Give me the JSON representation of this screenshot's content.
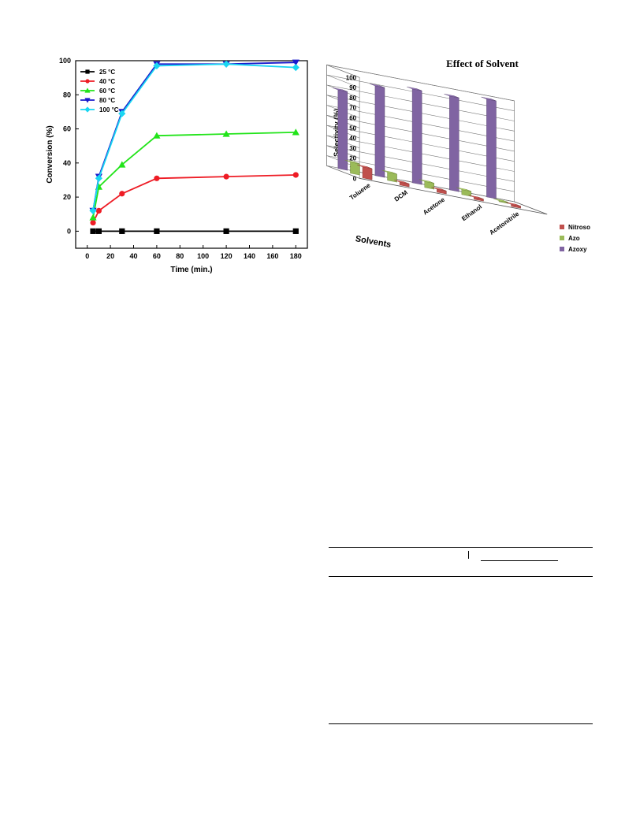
{
  "chart_data": [
    {
      "type": "line",
      "xlabel": "Time (min.)",
      "ylabel": "Conversion (%)",
      "xlim": [
        -10,
        190
      ],
      "ylim": [
        -10,
        100
      ],
      "x_ticks": [
        0,
        20,
        40,
        60,
        80,
        100,
        120,
        140,
        160,
        180
      ],
      "y_ticks": [
        0,
        20,
        40,
        60,
        80,
        100
      ],
      "legend_position": "top-left",
      "series": [
        {
          "name": "25 °C",
          "color": "#000000",
          "marker": "square",
          "x": [
            5,
            10,
            30,
            60,
            120,
            180
          ],
          "y": [
            0,
            0,
            0,
            0,
            0,
            0
          ]
        },
        {
          "name": "40 °C",
          "color": "#ee1c25",
          "marker": "circle",
          "x": [
            5,
            10,
            30,
            60,
            120,
            180
          ],
          "y": [
            5,
            12,
            22,
            31,
            32,
            33
          ]
        },
        {
          "name": "60 °C",
          "color": "#22e41a",
          "marker": "triangle-up",
          "x": [
            5,
            10,
            30,
            60,
            120,
            180
          ],
          "y": [
            8,
            26,
            39,
            56,
            57,
            58
          ]
        },
        {
          "name": "80 °C",
          "color": "#1a1acc",
          "marker": "triangle-down",
          "x": [
            5,
            10,
            30,
            60,
            120,
            180
          ],
          "y": [
            12,
            32,
            70,
            98,
            98,
            99
          ]
        },
        {
          "name": "100 °C",
          "color": "#19d6f2",
          "marker": "diamond",
          "x": [
            5,
            10,
            30,
            60,
            120,
            180
          ],
          "y": [
            12,
            31,
            69,
            97,
            98,
            96
          ]
        }
      ]
    },
    {
      "type": "bar",
      "subtype": "3d-column",
      "title": "Effect of Solvent",
      "ylabel": "Selectivity  (%)",
      "xlabel": "Solvents",
      "ylim": [
        0,
        100
      ],
      "y_ticks": [
        0,
        10,
        20,
        30,
        40,
        50,
        60,
        70,
        80,
        90,
        100
      ],
      "legend_position": "bottom-right",
      "categories": [
        "Toluene",
        "DCM",
        "Acetone",
        "Ethanol",
        "Acetonitrile"
      ],
      "series": [
        {
          "name": "Nitroso",
          "color": "#c0504d",
          "values": [
            11,
            3,
            3,
            2,
            2
          ]
        },
        {
          "name": "Azo",
          "color": "#9bbb59",
          "values": [
            11,
            8,
            6,
            5,
            1
          ]
        },
        {
          "name": "Azoxy",
          "color": "#8064a2",
          "values": [
            78,
            89,
            93,
            93,
            97
          ]
        }
      ]
    }
  ]
}
